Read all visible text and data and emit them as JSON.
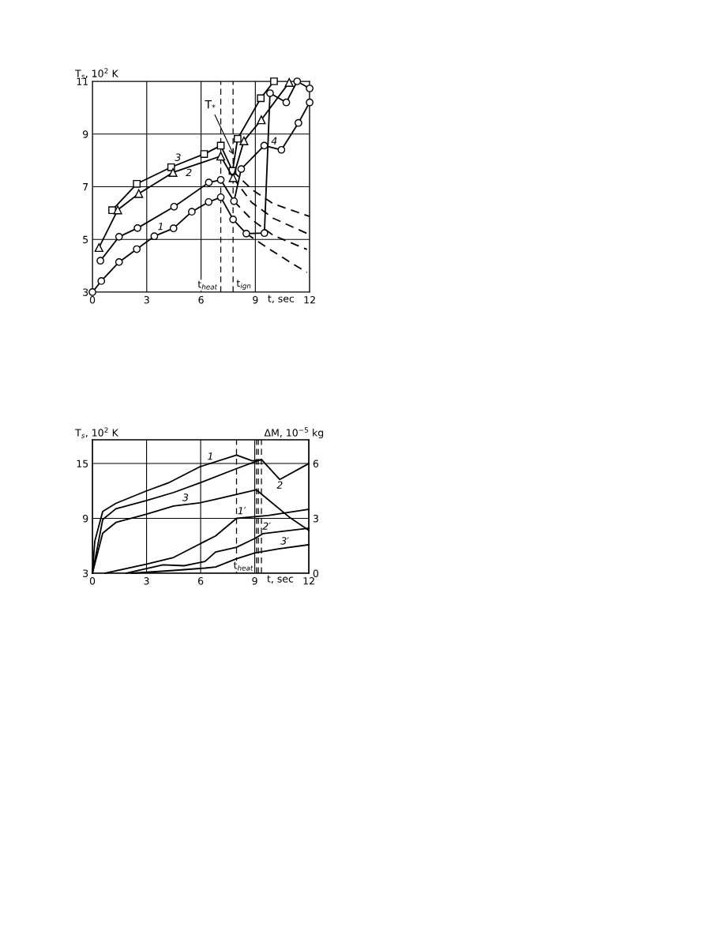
{
  "chart_data": [
    {
      "type": "line",
      "xlabel": "t, sec",
      "ylabel": "T$_{s}$, 10$^{2}$ K",
      "xlim": [
        0,
        12
      ],
      "ylim": [
        3,
        11
      ],
      "xticks": [
        0,
        3,
        6,
        9,
        12
      ],
      "yticks": [
        3,
        5,
        7,
        9,
        11
      ],
      "grid": true,
      "legend": false,
      "series": [
        {
          "name": "1",
          "color": "#000000",
          "marker": "circle",
          "x": [
            0,
            0.49,
            1.47,
            2.45,
            3.42,
            4.48,
            5.49,
            6.42,
            7.09,
            7.77,
            8.5,
            9.5,
            9.81,
            10.71,
            11.31,
            12
          ],
          "values": [
            3,
            3.42,
            4.14,
            4.63,
            5.12,
            5.42,
            6.05,
            6.42,
            6.6,
            5.76,
            5.22,
            5.24,
            10.55,
            10.2,
            11.0,
            10.73
          ]
        },
        {
          "name": "2",
          "color": "#000000",
          "marker": "triangle",
          "x": [
            0.36,
            1.4,
            2.56,
            4.45,
            7.09,
            7.77,
            8.37,
            9.33,
            10.87
          ],
          "values": [
            4.69,
            6.12,
            6.74,
            7.54,
            8.16,
            7.34,
            8.74,
            9.54,
            10.96
          ]
        },
        {
          "name": "3",
          "color": "#000000",
          "marker": "square",
          "x": [
            1.09,
            2.45,
            4.35,
            6.17,
            7.09,
            7.74,
            8.02,
            9.3,
            10.03
          ],
          "values": [
            6.11,
            7.11,
            7.74,
            8.24,
            8.56,
            7.6,
            8.82,
            10.36,
            11.0
          ]
        },
        {
          "name": "4",
          "color": "#000000",
          "marker": "circle",
          "x": [
            0.44,
            1.47,
            2.49,
            4.51,
            6.43,
            7.09,
            7.82,
            8.22,
            9.49,
            10.44,
            11.38,
            12
          ],
          "values": [
            4.19,
            5.1,
            5.43,
            6.24,
            7.16,
            7.26,
            6.45,
            7.67,
            8.56,
            8.4,
            9.42,
            10.2
          ]
        },
        {
          "color": "#000000",
          "marker": "none",
          "line_style": "dashed",
          "x": [
            7.74,
            8.8,
            10,
            12
          ],
          "values": [
            7.6,
            6.9,
            6.35,
            5.87
          ]
        },
        {
          "color": "#000000",
          "marker": "none",
          "line_style": "dashed",
          "x": [
            7.77,
            8.8,
            10,
            12
          ],
          "values": [
            7.34,
            6.4,
            5.8,
            5.18
          ]
        },
        {
          "color": "#000000",
          "marker": "none",
          "line_style": "dashed",
          "x": [
            7.82,
            8.8,
            10,
            11.85
          ],
          "values": [
            6.45,
            5.75,
            5.15,
            4.62
          ]
        },
        {
          "color": "#000000",
          "marker": "none",
          "line_style": "dashed",
          "x": [
            8.5,
            9.74,
            11,
            11.85
          ],
          "values": [
            5.22,
            4.65,
            4.1,
            3.75
          ]
        }
      ],
      "ref_lines": [
        {
          "axis": "x",
          "value": 7.09,
          "label": "t$_{heat}$",
          "line_style": "dashed"
        },
        {
          "axis": "x",
          "value": 7.77,
          "label": "t$_{ign}$",
          "line_style": "dashed"
        }
      ],
      "annotations": [
        {
          "text": "T$_{*}$",
          "x": 7.85,
          "y": 8.14
        }
      ]
    },
    {
      "type": "line",
      "xlabel": "t, sec",
      "ylabel": "T$_{s}$, 10$^{2}$ K",
      "y2label": "ΔM, 10$^{−5}$ kg",
      "xlim": [
        0,
        12
      ],
      "ylim": [
        3,
        17.6
      ],
      "y2lim": [
        0,
        7.3
      ],
      "xticks": [
        0,
        3,
        6,
        9,
        12
      ],
      "yticks": [
        3,
        9,
        15
      ],
      "y2ticks": [
        0,
        3,
        6
      ],
      "grid": true,
      "legend": false,
      "series": [
        {
          "name": "1",
          "color": "#000000",
          "marker": "none",
          "x": [
            0,
            0.13,
            0.57,
            1.3,
            2.97,
            4.2,
            5.95,
            7.99,
            8.86,
            9.37
          ],
          "values": [
            3,
            6.5,
            9.76,
            10.64,
            11.98,
            12.87,
            14.64,
            15.92,
            15.3,
            15.4
          ]
        },
        {
          "name": "2",
          "color": "#000000",
          "marker": "none",
          "x": [
            0,
            0.57,
            1.3,
            2.97,
            4.5,
            5.95,
            7.99,
            9.37,
            10.39,
            12
          ],
          "values": [
            3,
            8.87,
            10.05,
            10.94,
            11.83,
            12.87,
            14.44,
            15.44,
            13.25,
            15.0
          ]
        },
        {
          "name": "3",
          "color": "#000000",
          "marker": "none",
          "x": [
            0,
            0.57,
            1.3,
            2.97,
            4.5,
            5.95,
            6.83,
            9.08,
            10.9,
            12
          ],
          "values": [
            3,
            7.38,
            8.55,
            9.45,
            10.35,
            10.7,
            11.09,
            12.13,
            9.16,
            7.68
          ]
        },
        {
          "name": "1′",
          "color": "#000000",
          "marker": "none",
          "axis": "y2",
          "x": [
            0.71,
            2.97,
            4.5,
            5.95,
            6.83,
            7.99,
            9.74,
            12
          ],
          "values": [
            0,
            0.49,
            0.86,
            1.6,
            2.04,
            3.0,
            3.16,
            3.5
          ]
        },
        {
          "name": "2′",
          "color": "#000000",
          "marker": "none",
          "axis": "y2",
          "x": [
            1.88,
            3.92,
            5.08,
            6.24,
            6.83,
            7.99,
            9.0,
            9.45,
            12
          ],
          "values": [
            0,
            0.46,
            0.41,
            0.64,
            1.16,
            1.42,
            1.9,
            2.16,
            2.46
          ]
        },
        {
          "name": "3′",
          "color": "#000000",
          "marker": "none",
          "axis": "y2",
          "x": [
            2.17,
            4.5,
            6.24,
            6.83,
            7.99,
            9.0,
            10.32,
            12
          ],
          "values": [
            0,
            0.15,
            0.28,
            0.34,
            0.79,
            1.11,
            1.33,
            1.56
          ]
        }
      ],
      "ref_lines": [
        {
          "axis": "x",
          "value": 7.99,
          "line_style": "dashed"
        },
        {
          "axis": "x",
          "value": 9.1,
          "label": "t$_{heat}$",
          "line_style": "dashed"
        },
        {
          "axis": "x",
          "value": 9.2,
          "line_style": "dashed"
        },
        {
          "axis": "x",
          "value": 9.37,
          "line_style": "dashed"
        }
      ]
    }
  ]
}
